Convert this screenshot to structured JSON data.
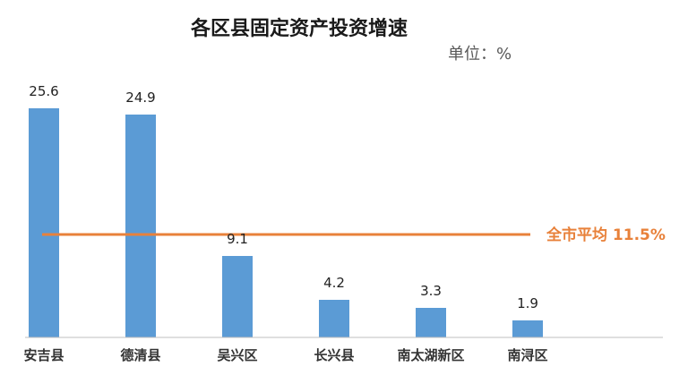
{
  "chart_data": {
    "type": "bar",
    "title": "各区县固定资产投资增速",
    "unit_label": "单位：%",
    "categories": [
      "安吉县",
      "德清县",
      "吴兴区",
      "长兴县",
      "南太湖新区",
      "南浔区"
    ],
    "values": [
      25.6,
      24.9,
      9.1,
      4.2,
      3.3,
      1.9
    ],
    "value_labels": [
      "25.6",
      "24.9",
      "9.1",
      "4.2",
      "3.3",
      "1.9"
    ],
    "reference_line": {
      "value": 11.5,
      "label": "全市平均 11.5%"
    },
    "ylim": [
      0,
      25.6
    ],
    "xlabel": "",
    "ylabel": "",
    "grid": false,
    "legend": "none",
    "colors": {
      "bar": "#5b9bd5",
      "reference_line": "#e8813a",
      "axis": "#bfbfbf"
    }
  }
}
